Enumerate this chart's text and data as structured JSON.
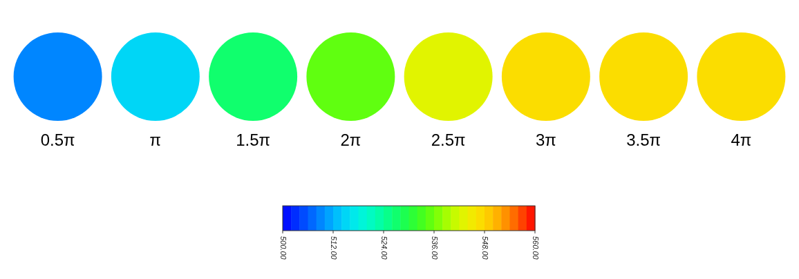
{
  "chart_data": {
    "type": "heatmap",
    "categories": [
      "0.5π",
      "π",
      "1.5π",
      "2π",
      "2.5π",
      "3π",
      "3.5π",
      "4π"
    ],
    "y_categories": [
      null
    ],
    "cells": [
      [
        508,
        515,
        527,
        535,
        542,
        546,
        547,
        547
      ]
    ],
    "clim": [
      500,
      560
    ],
    "cticks": [
      {
        "value": 500,
        "label": "500.00"
      },
      {
        "value": 512,
        "label": "512.00"
      },
      {
        "value": 524,
        "label": "524.00"
      },
      {
        "value": 536,
        "label": "536.00"
      },
      {
        "value": 548,
        "label": "548.00"
      },
      {
        "value": 560,
        "label": "560.00"
      }
    ]
  }
}
